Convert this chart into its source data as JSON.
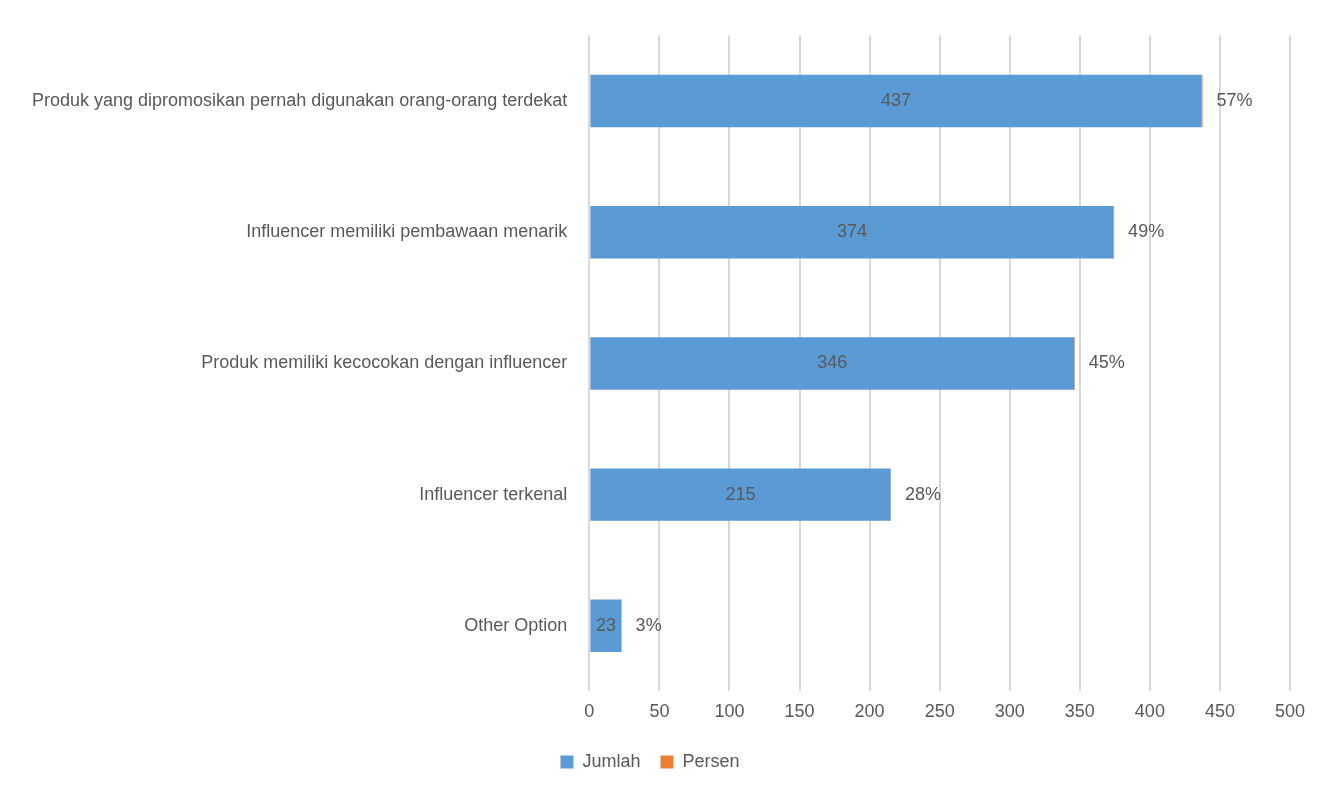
{
  "chart_data": {
    "type": "bar",
    "orientation": "horizontal",
    "stacked": true,
    "categories": [
      "Produk yang dipromosikan pernah digunakan orang-orang terdekat",
      "Influencer memiliki pembawaan menarik",
      "Produk memiliki kecocokan dengan influencer",
      "Influencer terkenal",
      "Other Option"
    ],
    "series": [
      {
        "name": "Jumlah",
        "color": "#5b9bd5",
        "values": [
          437,
          374,
          346,
          215,
          23
        ],
        "value_labels": [
          "437",
          "374",
          "346",
          "215",
          "23"
        ]
      },
      {
        "name": "Persen",
        "color": "#ed7d31",
        "values": [
          0.57,
          0.49,
          0.45,
          0.28,
          0.03
        ],
        "value_labels": [
          "57%",
          "49%",
          "45%",
          "28%",
          "3%"
        ]
      }
    ],
    "xlim": [
      0,
      500
    ],
    "xticks": [
      0,
      50,
      100,
      150,
      200,
      250,
      300,
      350,
      400,
      450,
      500
    ],
    "grid": "x",
    "legend": "bottom"
  }
}
